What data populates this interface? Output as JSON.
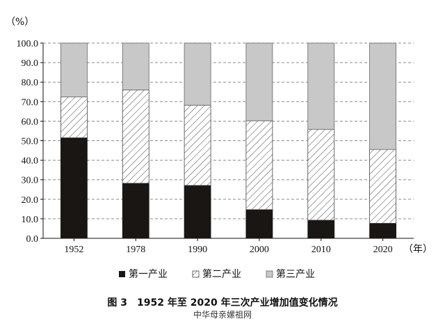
{
  "chart_data": {
    "type": "bar",
    "stacked": true,
    "categories": [
      "1952",
      "1978",
      "1990",
      "2000",
      "2010",
      "2020"
    ],
    "series": [
      {
        "name": "第一产业",
        "values": [
          51.5,
          28.2,
          27.1,
          14.7,
          9.3,
          7.7
        ]
      },
      {
        "name": "第二产业",
        "values": [
          20.9,
          47.8,
          41.1,
          45.5,
          46.5,
          37.8
        ]
      },
      {
        "name": "第三产业",
        "values": [
          27.6,
          24.0,
          31.8,
          39.8,
          44.2,
          54.5
        ]
      }
    ],
    "yticks": [
      "0.0",
      "10.0",
      "20.0",
      "30.0",
      "40.0",
      "50.0",
      "60.0",
      "70.0",
      "80.0",
      "90.0",
      "100.0"
    ],
    "ylim": [
      0,
      100
    ],
    "y_unit": "（%）",
    "x_unit": "（年）",
    "grid": true,
    "legend_position": "bottom",
    "colors": {
      "primary": "#1a1613",
      "secondary_hatch": "#555555",
      "tertiary": "#c8c8c8"
    },
    "fills": [
      "solid-black",
      "diagonal-hatch",
      "light-gray"
    ],
    "caption": "图 3　1952 年至 2020 年三次产业增加值变化情况"
  },
  "watermark": "中华母亲嫘祖网"
}
